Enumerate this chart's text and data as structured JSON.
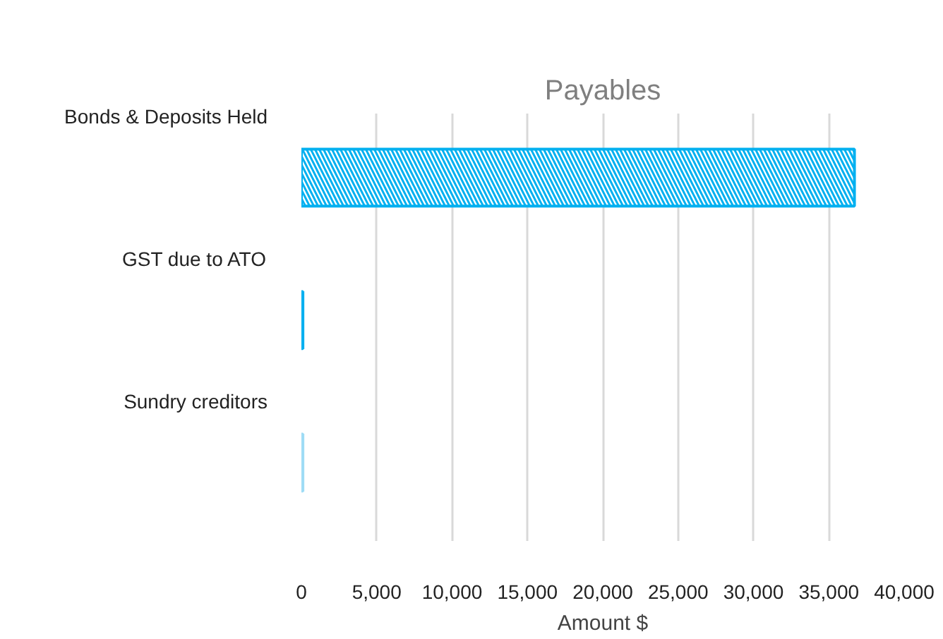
{
  "chart_data": {
    "type": "bar",
    "orientation": "horizontal",
    "title": "Payables",
    "xlabel": "Amount $",
    "categories": [
      "Bonds & Deposits Held",
      "GST due to ATO",
      "Sundry creditors"
    ],
    "values": [
      36700,
      100,
      100
    ],
    "colors": [
      "#00b0f0",
      "#00b0f0",
      "#9fdcf5"
    ],
    "xlim": [
      0,
      40000
    ],
    "xticks": [
      0,
      {
        "value": 5000,
        "label": "5,000"
      },
      {
        "value": 10000,
        "label": "10,000"
      },
      {
        "value": 15000,
        "label": "15,000"
      },
      {
        "value": 20000,
        "label": "20,000"
      },
      {
        "value": 25000,
        "label": "25,000"
      },
      {
        "value": 30000,
        "label": "30,000"
      },
      {
        "value": 35000,
        "label": "35,000"
      },
      {
        "value": 40000,
        "label": "40,000"
      }
    ],
    "grid": "x"
  }
}
